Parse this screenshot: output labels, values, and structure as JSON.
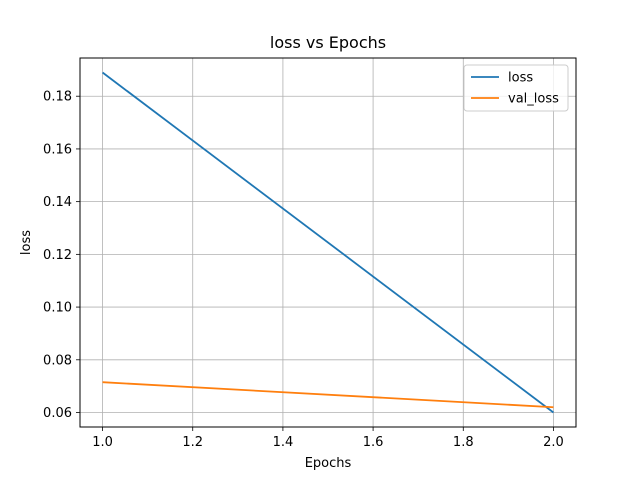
{
  "chart_data": {
    "type": "line",
    "title": "loss vs Epochs",
    "xlabel": "Epochs",
    "ylabel": "loss",
    "xlim": [
      0.95,
      2.05
    ],
    "ylim": [
      0.0545,
      0.1945
    ],
    "xticks": [
      1.0,
      1.2,
      1.4,
      1.6,
      1.8,
      2.0
    ],
    "xtick_labels": [
      "1.0",
      "1.2",
      "1.4",
      "1.6",
      "1.8",
      "2.0"
    ],
    "yticks": [
      0.06,
      0.08,
      0.1,
      0.12,
      0.14,
      0.16,
      0.18
    ],
    "ytick_labels": [
      "0.06",
      "0.08",
      "0.10",
      "0.12",
      "0.14",
      "0.16",
      "0.18"
    ],
    "grid": true,
    "legend_position": "top-right",
    "x": [
      1.0,
      2.0
    ],
    "series": [
      {
        "name": "loss",
        "color": "#1f77b4",
        "values": [
          0.189,
          0.06
        ]
      },
      {
        "name": "val_loss",
        "color": "#ff7f0e",
        "values": [
          0.0715,
          0.062
        ]
      }
    ]
  }
}
